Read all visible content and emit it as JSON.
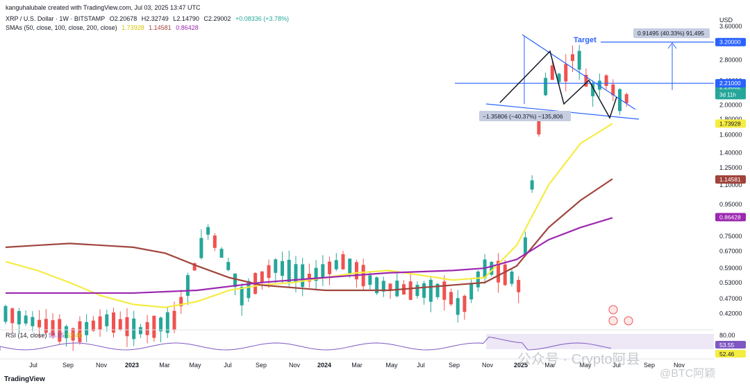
{
  "header": {
    "credit": "kanguhalubale created with TradingView.com, Jul 03, 2025 13:47 UTC",
    "symbol": "XRP / U.S. Dollar · 1W · BITSTAMP",
    "o": "O2.20678",
    "h": "H2.32749",
    "l": "L2.14790",
    "c": "C2.29002",
    "change": "+0.08336 (+3.78%)",
    "sma_label": "SMAs (50, close, 100, close, 200, close)",
    "sma50": "1.73928",
    "sma100": "1.14581",
    "sma200": "0.86428"
  },
  "colors": {
    "up": "#26a69a",
    "down": "#ef5350",
    "sma50": "#f5ec42",
    "sma100": "#a0443c",
    "sma200": "#9c27b0",
    "pattern": "#2962ff",
    "target": "#2962ff",
    "rsi": "#7e57c2"
  },
  "chart_data": {
    "type": "candlestick",
    "currency": "USD",
    "scale": "log",
    "ylim": [
      0.38,
      3.6
    ],
    "y_ticks": [
      3.6,
      3.2,
      2.8,
      2.4,
      2.0,
      1.8,
      1.6,
      1.4,
      1.25,
      1.1,
      0.95,
      0.85,
      0.75,
      0.67,
      0.59,
      0.53,
      0.47,
      0.42
    ],
    "y_tick_labels": [
      "3.60000",
      "3.20000",
      "2.80000",
      "2.40000",
      "2.00000",
      "1.80000",
      "1.60000",
      "1.40000",
      "1.25000",
      "1.10000",
      "0.95000",
      "0.85000",
      "0.75000",
      "0.67000",
      "0.59000",
      "0.53000",
      "0.47000",
      "0.42000"
    ],
    "x_ticks": [
      "Jul",
      "Sep",
      "Nov",
      "2023",
      "Mar",
      "May",
      "Jul",
      "Sep",
      "Nov",
      "2024",
      "Mar",
      "May",
      "Jul",
      "Sep",
      "Nov",
      "2025",
      "Mar",
      "May",
      "Jul",
      "Sep",
      "Nov"
    ],
    "x_range": [
      "2022-06",
      "2025-12"
    ],
    "price_labels": [
      {
        "value": 3.2,
        "text": "3.20000",
        "color": "#2962ff"
      },
      {
        "value": 2.29002,
        "text": "2.29002",
        "sub": "3d 11h",
        "color": "#26a69a"
      },
      {
        "value": 2.21,
        "text": "2.21000",
        "color": "#2962ff"
      },
      {
        "value": 1.73928,
        "text": "1.73928",
        "color": "#f5ec42"
      },
      {
        "value": 1.14581,
        "text": "1.14581",
        "color": "#a0443c"
      },
      {
        "value": 0.86428,
        "text": "0.86428",
        "color": "#9c27b0"
      }
    ],
    "annotations": {
      "target_label": "Target",
      "target_box": "0.91495 (40.33%) 91,495",
      "measure_box": "−1.35806 (−40.37%) −135,806",
      "target_level": 3.2,
      "breakout_level": 2.21
    },
    "sma_series": [
      {
        "name": "SMA 50",
        "points": [
          [
            0,
            0.62
          ],
          [
            20,
            0.58
          ],
          [
            40,
            0.53
          ],
          [
            60,
            0.48
          ],
          [
            80,
            0.45
          ],
          [
            100,
            0.44
          ],
          [
            120,
            0.46
          ],
          [
            140,
            0.5
          ],
          [
            160,
            0.52
          ],
          [
            180,
            0.53
          ],
          [
            200,
            0.55
          ],
          [
            220,
            0.57
          ],
          [
            240,
            0.58
          ],
          [
            260,
            0.56
          ],
          [
            280,
            0.54
          ],
          [
            300,
            0.55
          ],
          [
            320,
            0.7
          ],
          [
            340,
            1.1
          ],
          [
            360,
            1.5
          ],
          [
            380,
            1.74
          ]
        ]
      },
      {
        "name": "SMA 100",
        "points": [
          [
            0,
            0.69
          ],
          [
            20,
            0.7
          ],
          [
            40,
            0.71
          ],
          [
            60,
            0.7
          ],
          [
            80,
            0.69
          ],
          [
            100,
            0.66
          ],
          [
            120,
            0.6
          ],
          [
            140,
            0.55
          ],
          [
            160,
            0.52
          ],
          [
            180,
            0.51
          ],
          [
            200,
            0.5
          ],
          [
            220,
            0.5
          ],
          [
            240,
            0.5
          ],
          [
            260,
            0.51
          ],
          [
            280,
            0.52
          ],
          [
            300,
            0.53
          ],
          [
            320,
            0.6
          ],
          [
            340,
            0.8
          ],
          [
            360,
            0.98
          ],
          [
            380,
            1.15
          ]
        ]
      },
      {
        "name": "SMA 200",
        "points": [
          [
            0,
            0.49
          ],
          [
            40,
            0.49
          ],
          [
            80,
            0.49
          ],
          [
            120,
            0.5
          ],
          [
            160,
            0.53
          ],
          [
            200,
            0.55
          ],
          [
            240,
            0.57
          ],
          [
            280,
            0.58
          ],
          [
            300,
            0.59
          ],
          [
            320,
            0.63
          ],
          [
            340,
            0.73
          ],
          [
            360,
            0.8
          ],
          [
            380,
            0.86
          ]
        ]
      }
    ],
    "rsi": {
      "label": "RSI (14, close)",
      "value": "53.55",
      "ma": "52.46",
      "levels": [
        "80.00"
      ]
    }
  },
  "watermark": {
    "text1": "公众号 · Crypto阿县",
    "text2": "@BTC阿颖"
  },
  "footer": {
    "logo": "TradingView"
  }
}
